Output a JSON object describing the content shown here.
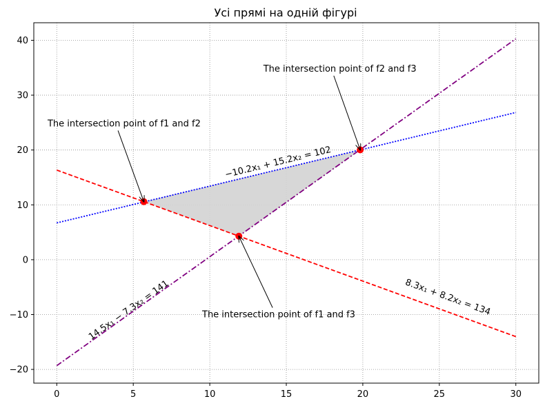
{
  "chart_data": {
    "type": "line",
    "title": "Усі прямі на одній фігурі",
    "xlabel": "",
    "ylabel": "",
    "xlim": [
      -1.5,
      31.5
    ],
    "ylim": [
      -22.5,
      43.2
    ],
    "xticks": [
      0,
      5,
      10,
      15,
      20,
      25,
      30
    ],
    "yticks": [
      -20,
      -10,
      0,
      10,
      20,
      30,
      40
    ],
    "grid": true,
    "series": [
      {
        "id": "f1",
        "equation": "8.3x₁ + 8.2x₂ = 134",
        "x": [
          0,
          30
        ],
        "y": [
          16.34,
          -14.02
        ],
        "color": "#ff0000",
        "style": "dashed"
      },
      {
        "id": "f2",
        "equation": "−10.2x₁ + 15.2x₂ = 102",
        "x": [
          0,
          30
        ],
        "y": [
          6.71,
          26.84
        ],
        "color": "#0000ff",
        "style": "dotted"
      },
      {
        "id": "f3",
        "equation": "14.5x₁ − 7.3x₂ = 141",
        "x": [
          0,
          30
        ],
        "y": [
          -19.32,
          40.27
        ],
        "color": "#800080",
        "style": "dashdot"
      }
    ],
    "intersections": [
      {
        "x": 5.69,
        "y": 10.58
      },
      {
        "x": 19.83,
        "y": 20.02
      },
      {
        "x": 11.9,
        "y": 4.29
      }
    ],
    "shaded_region": {
      "color": "#d3d3d3"
    },
    "point_color": "#ff0000",
    "annotations": [
      {
        "text": "The intersection point of  f1 and f2",
        "point": [
          5.69,
          10.58
        ],
        "text_at": [
          -0.6,
          24.8
        ]
      },
      {
        "text": "The intersection point of  f2 and f3",
        "point": [
          19.83,
          20.02
        ],
        "text_at": [
          13.5,
          34.8
        ]
      },
      {
        "text": "The intersection point of  f1 and f3",
        "point": [
          11.9,
          4.29
        ],
        "text_at": [
          9.5,
          -10.0
        ]
      }
    ],
    "line_labels": [
      {
        "series": "f1",
        "text": "8.3x₁ + 8.2x₂ = 134",
        "at": [
          25.5,
          -7.3
        ]
      },
      {
        "series": "f2",
        "text": "−10.2x₁ + 15.2x₂ = 102",
        "at": [
          14.5,
          17.3
        ]
      },
      {
        "series": "f3",
        "text": "14.5x₁ − 7.3x₂ = 141",
        "at": [
          4.8,
          -9.6
        ]
      }
    ]
  }
}
